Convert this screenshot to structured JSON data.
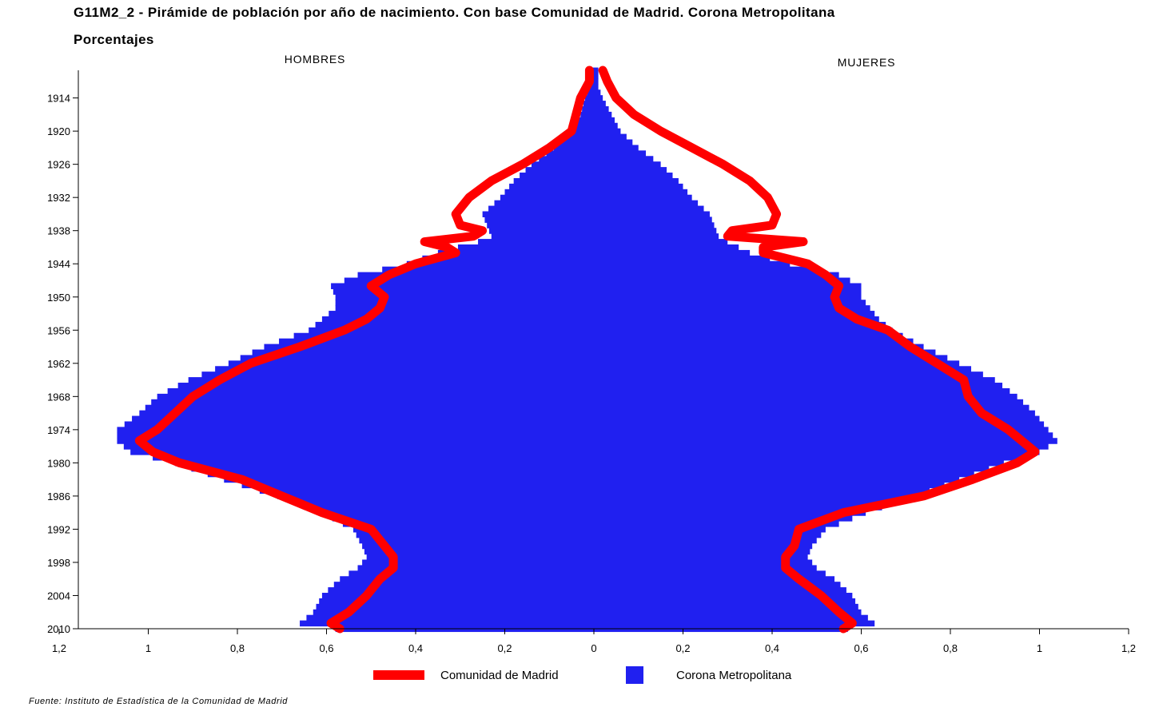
{
  "chart_data": {
    "type": "population-pyramid",
    "title": "G11M2_2 - Pirámide de población por año de nacimiento. Con base Comunidad de Madrid. Corona Metropolitana",
    "subtitle": "Porcentajes",
    "left_label": "HOMBRES",
    "right_label": "MUJERES",
    "source": "Fuente: Instituto de Estadística de la Comunidad de Madrid",
    "x_ticks": [
      "1,2",
      "1",
      "0,8",
      "0,6",
      "0,4",
      "0,2",
      "0",
      "0,2",
      "0,4",
      "0,6",
      "0,8",
      "1",
      "1,2"
    ],
    "x_tick_values": [
      -1.2,
      -1.0,
      -0.8,
      -0.6,
      -0.4,
      -0.2,
      0,
      0.2,
      0.4,
      0.6,
      0.8,
      1.0,
      1.2
    ],
    "y_ticks": [
      "1914",
      "1920",
      "1926",
      "1932",
      "1938",
      "1944",
      "1950",
      "1956",
      "1962",
      "1968",
      "1974",
      "1980",
      "1986",
      "1992",
      "1998",
      "2004",
      "2010"
    ],
    "xlim": [
      -1.2,
      1.2
    ],
    "ylim": [
      1909,
      2010
    ],
    "legend": {
      "line_label": "Comunidad de Madrid",
      "bar_label": "Corona Metropolitana",
      "placement": "bottom-center"
    },
    "colors": {
      "bars": "#2020f0",
      "line": "#ff0000",
      "axis": "#000000"
    },
    "series": [
      {
        "name": "Corona Metropolitana",
        "kind": "bars",
        "years": [
          1909,
          1912,
          1914,
          1917,
          1920,
          1923,
          1926,
          1929,
          1932,
          1935,
          1937,
          1939,
          1940,
          1942,
          1944,
          1946,
          1948,
          1950,
          1952,
          1954,
          1956,
          1959,
          1962,
          1965,
          1968,
          1971,
          1974,
          1976,
          1978,
          1980,
          1983,
          1986,
          1989,
          1992,
          1995,
          1997,
          1999,
          2001,
          2004,
          2007,
          2009,
          2010
        ],
        "men": [
          0.01,
          0.01,
          0.02,
          0.03,
          0.05,
          0.09,
          0.14,
          0.18,
          0.21,
          0.25,
          0.24,
          0.23,
          0.26,
          0.35,
          0.42,
          0.53,
          0.59,
          0.58,
          0.58,
          0.61,
          0.64,
          0.74,
          0.82,
          0.91,
          0.98,
          1.02,
          1.07,
          1.07,
          1.04,
          0.94,
          0.83,
          0.71,
          0.61,
          0.54,
          0.52,
          0.51,
          0.53,
          0.57,
          0.61,
          0.63,
          0.66,
          0.58
        ],
        "women": [
          0.01,
          0.01,
          0.02,
          0.04,
          0.06,
          0.1,
          0.15,
          0.19,
          0.22,
          0.26,
          0.27,
          0.28,
          0.3,
          0.35,
          0.44,
          0.55,
          0.6,
          0.6,
          0.62,
          0.64,
          0.67,
          0.74,
          0.82,
          0.9,
          0.95,
          0.99,
          1.02,
          1.04,
          1.0,
          0.92,
          0.82,
          0.72,
          0.61,
          0.52,
          0.49,
          0.48,
          0.5,
          0.54,
          0.58,
          0.6,
          0.63,
          0.57
        ]
      },
      {
        "name": "Comunidad de Madrid",
        "kind": "line",
        "years": [
          1909,
          1911,
          1914,
          1917,
          1920,
          1923,
          1926,
          1929,
          1932,
          1935,
          1937,
          1938,
          1939,
          1940,
          1941,
          1942,
          1944,
          1946,
          1948,
          1950,
          1952,
          1954,
          1956,
          1959,
          1962,
          1965,
          1968,
          1971,
          1974,
          1976,
          1978,
          1980,
          1983,
          1986,
          1989,
          1992,
          1995,
          1997,
          1999,
          2001,
          2004,
          2007,
          2009,
          2010
        ],
        "men": [
          0.01,
          0.01,
          0.03,
          0.04,
          0.05,
          0.1,
          0.16,
          0.23,
          0.28,
          0.31,
          0.3,
          0.25,
          0.27,
          0.38,
          0.33,
          0.31,
          0.4,
          0.46,
          0.5,
          0.47,
          0.48,
          0.51,
          0.56,
          0.66,
          0.77,
          0.84,
          0.9,
          0.94,
          0.98,
          1.02,
          0.99,
          0.93,
          0.79,
          0.7,
          0.61,
          0.5,
          0.47,
          0.45,
          0.45,
          0.48,
          0.51,
          0.55,
          0.59,
          0.57
        ],
        "women": [
          0.02,
          0.03,
          0.05,
          0.09,
          0.15,
          0.22,
          0.29,
          0.35,
          0.39,
          0.41,
          0.4,
          0.31,
          0.3,
          0.47,
          0.38,
          0.38,
          0.48,
          0.52,
          0.55,
          0.54,
          0.55,
          0.59,
          0.66,
          0.71,
          0.77,
          0.83,
          0.84,
          0.87,
          0.93,
          0.96,
          0.99,
          0.95,
          0.85,
          0.74,
          0.56,
          0.46,
          0.45,
          0.43,
          0.43,
          0.46,
          0.51,
          0.55,
          0.58,
          0.56
        ]
      }
    ]
  }
}
